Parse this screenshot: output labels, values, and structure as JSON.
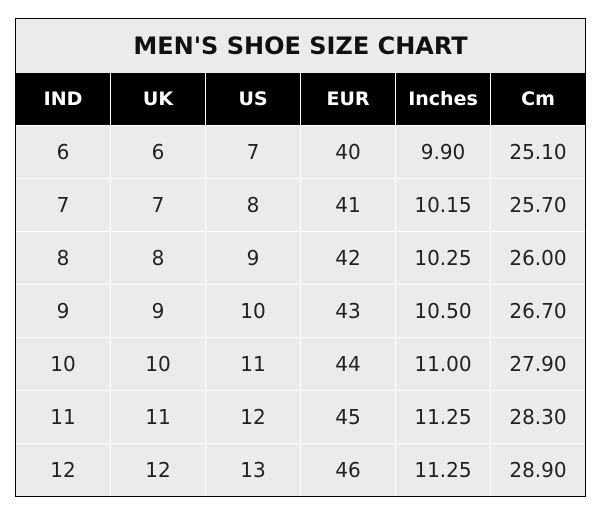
{
  "chart_data": {
    "type": "table",
    "title": "MEN'S SHOE SIZE CHART",
    "columns": [
      "IND",
      "UK",
      "US",
      "EUR",
      "Inches",
      "Cm"
    ],
    "rows": [
      [
        "6",
        "6",
        "7",
        "40",
        "9.90",
        "25.10"
      ],
      [
        "7",
        "7",
        "8",
        "41",
        "10.15",
        "25.70"
      ],
      [
        "8",
        "8",
        "9",
        "42",
        "10.25",
        "26.00"
      ],
      [
        "9",
        "9",
        "10",
        "43",
        "10.50",
        "26.70"
      ],
      [
        "10",
        "10",
        "11",
        "44",
        "11.00",
        "27.90"
      ],
      [
        "11",
        "11",
        "12",
        "45",
        "11.25",
        "28.30"
      ],
      [
        "12",
        "12",
        "13",
        "46",
        "11.25",
        "28.90"
      ]
    ],
    "colors": {
      "header_bg": "#000000",
      "header_text": "#ffffff",
      "cell_bg": "#ebebeb",
      "grid": "#ffffff"
    }
  }
}
